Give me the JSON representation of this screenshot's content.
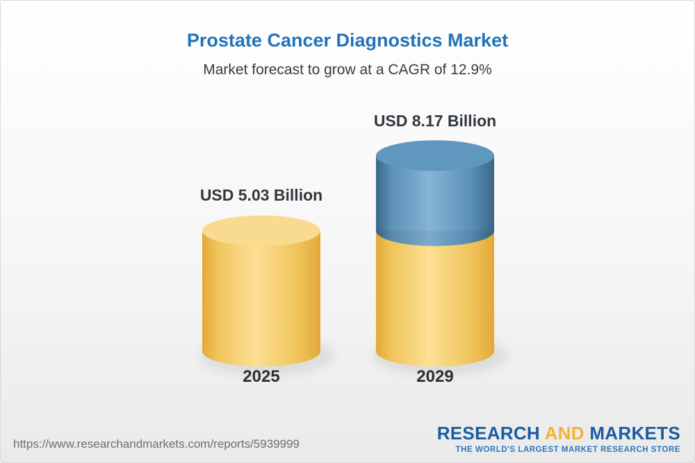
{
  "page": {
    "title": "Prostate Cancer Diagnostics Market",
    "subtitle": "Market forecast to grow at a CAGR of 12.9%"
  },
  "footer": {
    "url": "https://www.researchandmarkets.com/reports/5939999",
    "logo": {
      "word_research": "RESEARCH",
      "word_and": "AND",
      "word_markets": "MARKETS",
      "tagline": "THE WORLD'S LARGEST MARKET RESEARCH STORE"
    }
  },
  "palette": {
    "title_blue": "#2173B9",
    "text_dark": "#31373E",
    "logo_blue": "#1A5CA4",
    "logo_gold": "#F2B233",
    "yellow": {
      "edge": "#E2A838",
      "light": "#F0C45C",
      "mid": "#FCE094",
      "top": "#F8DB8E"
    },
    "blue": {
      "edge": "#3A6787",
      "light": "#5C90B6",
      "mid": "#85B4D7",
      "top": "#6097BE"
    }
  },
  "chart_data": {
    "type": "bar",
    "style": "3d-cylinder",
    "title": "Prostate Cancer Diagnostics Market",
    "subtitle": "Market forecast to grow at a CAGR of 12.9%",
    "unit": "USD Billion",
    "cagr_percent": 12.9,
    "categories": [
      "2025",
      "2029"
    ],
    "values": [
      5.03,
      8.17
    ],
    "value_labels": [
      "USD 5.03 Billion",
      "USD 8.17 Billion"
    ],
    "ylim": [
      0,
      9
    ],
    "grid": false,
    "legend": false,
    "bars": [
      {
        "category": "2025",
        "label": "USD 5.03 Billion",
        "segments": [
          {
            "value": 5.03,
            "color": "yellow"
          }
        ]
      },
      {
        "category": "2029",
        "label": "USD 8.17 Billion",
        "segments": [
          {
            "value": 5.03,
            "color": "yellow"
          },
          {
            "value": 3.14,
            "color": "blue"
          }
        ]
      }
    ]
  }
}
